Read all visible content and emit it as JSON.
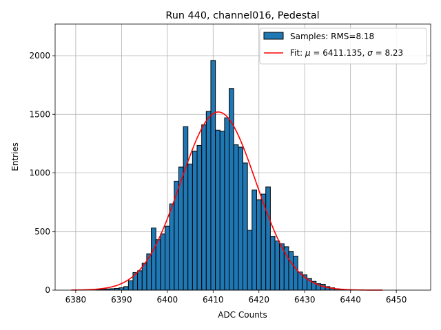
{
  "chart_data": {
    "type": "bar",
    "title": "Run 440, channel016, Pedestal",
    "xlabel": "ADC Counts",
    "ylabel": "Entries",
    "xlim": [
      6375.5,
      6457.5
    ],
    "ylim": [
      0,
      2270
    ],
    "x_ticks": [
      6380,
      6390,
      6400,
      6410,
      6420,
      6430,
      6440,
      6450
    ],
    "y_ticks": [
      0,
      500,
      1000,
      1500,
      2000
    ],
    "grid": true,
    "legend_position": "top-right",
    "histogram": {
      "name": "Samples: RMS=8.18",
      "color": "#1f77b4",
      "bin_width": 1,
      "bin_centers": [
        6385,
        6386,
        6387,
        6388,
        6389,
        6390,
        6391,
        6392,
        6393,
        6394,
        6395,
        6396,
        6397,
        6398,
        6399,
        6400,
        6401,
        6402,
        6403,
        6404,
        6405,
        6406,
        6407,
        6408,
        6409,
        6410,
        6411,
        6412,
        6413,
        6414,
        6415,
        6416,
        6417,
        6418,
        6419,
        6420,
        6421,
        6422,
        6423,
        6424,
        6425,
        6426,
        6427,
        6428,
        6429,
        6430,
        6431,
        6432,
        6433,
        6434,
        6435,
        6436,
        6437,
        6438,
        6439,
        6440
      ],
      "counts": [
        5,
        8,
        10,
        12,
        15,
        20,
        30,
        80,
        150,
        165,
        230,
        310,
        530,
        430,
        480,
        545,
        735,
        930,
        1050,
        1395,
        1075,
        1185,
        1235,
        1410,
        1525,
        1960,
        1365,
        1355,
        1470,
        1720,
        1240,
        1220,
        1085,
        510,
        855,
        770,
        820,
        880,
        460,
        420,
        395,
        370,
        330,
        290,
        155,
        130,
        100,
        75,
        55,
        50,
        30,
        20,
        12,
        8,
        5,
        3
      ]
    },
    "fit": {
      "name": "Fit: μ = 6411.135, σ = 8.23",
      "label_prefix": "Fit: ",
      "mu_symbol": "μ",
      "mu_text": " = 6411.135, ",
      "sigma_symbol": "σ",
      "sigma_text": " = 8.23",
      "color": "#ff0000",
      "mu": 6411.135,
      "sigma": 8.23,
      "amplitude": 1520,
      "x_range": [
        6379,
        6447
      ]
    }
  }
}
